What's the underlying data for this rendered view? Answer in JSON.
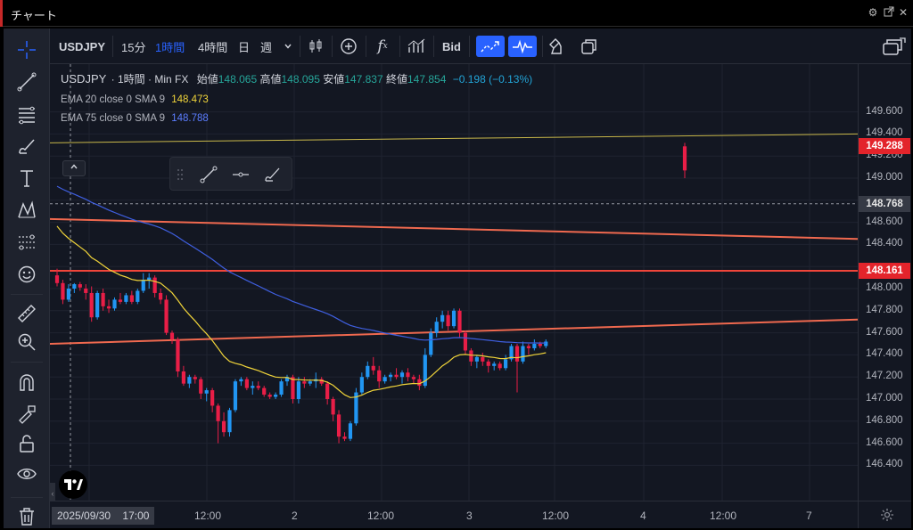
{
  "window": {
    "title": "チャート",
    "settings_icon": "gear-icon",
    "popout_icon": "popout-icon",
    "close_icon": "close-icon"
  },
  "toolbar": {
    "symbol": "USDJPY",
    "intervals": [
      "15分",
      "1時間",
      "4時間",
      "日",
      "週"
    ],
    "active_interval": "1時間",
    "bid_label": "Bid"
  },
  "legend": {
    "symbol": "USDJPY",
    "interval": "1時間",
    "source": "Min FX",
    "open_label": "始値",
    "open": "148.065",
    "high_label": "高値",
    "high": "148.095",
    "low_label": "安値",
    "low": "147.837",
    "close_label": "終値",
    "close": "147.854",
    "change": "−0.198 (−0.13%)"
  },
  "indicators": [
    {
      "label": "EMA 20 close 0 SMA 9",
      "value": "148.473",
      "color": "#f0d43a"
    },
    {
      "label": "EMA 75 close 0 SMA 9",
      "value": "148.788",
      "color": "#3f5fe0"
    }
  ],
  "price_scale": {
    "labels": [
      "149.600",
      "149.400",
      "149.200",
      "149.000",
      "148.600",
      "148.400",
      "148.000",
      "147.800",
      "147.600",
      "147.400",
      "147.200",
      "147.000",
      "146.800",
      "146.600",
      "146.400"
    ],
    "tags": [
      {
        "value": "149.288",
        "kind": "red"
      },
      {
        "value": "148.768",
        "kind": "crosshair"
      },
      {
        "value": "148.161",
        "kind": "red"
      }
    ]
  },
  "time_scale": {
    "crosshair_date": "2025/09/30",
    "crosshair_time": "17:00",
    "labels": [
      "12:00",
      "2",
      "12:00",
      "3",
      "12:00",
      "4",
      "12:00",
      "7"
    ]
  },
  "chart_data": {
    "type": "candlestick",
    "symbol": "USDJPY",
    "ylim": [
      146.3,
      149.7
    ],
    "grid": true,
    "up_color": "#2196f3",
    "down_color": "#e91e47",
    "candles": [
      [
        148.12,
        148.18,
        148.02,
        148.05
      ],
      [
        148.05,
        148.08,
        147.86,
        147.9
      ],
      [
        147.9,
        148.04,
        147.88,
        148.0
      ],
      [
        148.0,
        148.05,
        147.96,
        148.04
      ],
      [
        148.04,
        148.06,
        147.98,
        148.01
      ],
      [
        148.0,
        148.04,
        147.9,
        147.96
      ],
      [
        147.96,
        148.02,
        147.7,
        147.74
      ],
      [
        147.74,
        147.98,
        147.72,
        147.96
      ],
      [
        147.96,
        148.0,
        147.8,
        147.84
      ],
      [
        147.84,
        147.9,
        147.78,
        147.82
      ],
      [
        147.82,
        147.92,
        147.8,
        147.9
      ],
      [
        147.9,
        147.96,
        147.86,
        147.88
      ],
      [
        147.88,
        147.96,
        147.86,
        147.94
      ],
      [
        147.94,
        147.98,
        147.86,
        147.88
      ],
      [
        147.88,
        148.0,
        147.86,
        147.98
      ],
      [
        147.98,
        148.14,
        147.96,
        148.08
      ],
      [
        148.08,
        148.14,
        148.0,
        148.1
      ],
      [
        148.1,
        148.12,
        147.92,
        147.96
      ],
      [
        147.96,
        148.0,
        147.86,
        147.9
      ],
      [
        147.9,
        147.94,
        147.58,
        147.6
      ],
      [
        147.6,
        147.62,
        147.5,
        147.54
      ],
      [
        147.54,
        147.56,
        147.2,
        147.25
      ],
      [
        147.25,
        147.3,
        147.12,
        147.14
      ],
      [
        147.14,
        147.22,
        147.1,
        147.2
      ],
      [
        147.2,
        147.22,
        147.14,
        147.18
      ],
      [
        147.18,
        147.2,
        147.0,
        147.05
      ],
      [
        147.05,
        147.1,
        146.98,
        147.08
      ],
      [
        147.08,
        147.1,
        146.88,
        146.94
      ],
      [
        146.94,
        146.96,
        146.6,
        146.8
      ],
      [
        146.8,
        146.88,
        146.66,
        146.7
      ],
      [
        146.7,
        146.92,
        146.66,
        146.9
      ],
      [
        146.9,
        147.18,
        146.88,
        147.16
      ],
      [
        147.16,
        147.2,
        147.12,
        147.18
      ],
      [
        147.18,
        147.2,
        147.08,
        147.1
      ],
      [
        147.1,
        147.16,
        147.04,
        147.12
      ],
      [
        147.12,
        147.16,
        147.08,
        147.1
      ],
      [
        147.1,
        147.12,
        147.02,
        147.04
      ],
      [
        147.04,
        147.06,
        147.0,
        147.02
      ],
      [
        147.02,
        147.06,
        147.0,
        147.04
      ],
      [
        147.04,
        147.18,
        147.02,
        147.16
      ],
      [
        147.16,
        147.22,
        147.12,
        147.2
      ],
      [
        147.2,
        147.22,
        146.96,
        147.0
      ],
      [
        147.0,
        147.2,
        146.96,
        147.16
      ],
      [
        147.16,
        147.2,
        147.1,
        147.14
      ],
      [
        147.14,
        147.18,
        147.12,
        147.16
      ],
      [
        147.16,
        147.24,
        147.1,
        147.18
      ],
      [
        147.18,
        147.2,
        147.12,
        147.14
      ],
      [
        147.14,
        147.16,
        146.95,
        147.0
      ],
      [
        147.0,
        147.02,
        146.8,
        146.86
      ],
      [
        146.86,
        146.9,
        146.6,
        146.66
      ],
      [
        146.66,
        146.7,
        146.62,
        146.64
      ],
      [
        146.64,
        146.8,
        146.62,
        146.78
      ],
      [
        146.78,
        147.1,
        146.76,
        147.06
      ],
      [
        147.06,
        147.24,
        147.04,
        147.2
      ],
      [
        147.2,
        147.34,
        147.18,
        147.3
      ],
      [
        147.3,
        147.38,
        147.22,
        147.26
      ],
      [
        147.26,
        147.3,
        147.1,
        147.16
      ],
      [
        147.16,
        147.22,
        147.14,
        147.2
      ],
      [
        147.2,
        147.24,
        147.16,
        147.22
      ],
      [
        147.22,
        147.28,
        147.18,
        147.2
      ],
      [
        147.2,
        147.26,
        147.14,
        147.24
      ],
      [
        147.24,
        147.28,
        147.16,
        147.2
      ],
      [
        147.2,
        147.22,
        147.14,
        147.18
      ],
      [
        147.18,
        147.22,
        147.08,
        147.12
      ],
      [
        147.12,
        147.46,
        147.1,
        147.4
      ],
      [
        147.4,
        147.64,
        147.38,
        147.6
      ],
      [
        147.6,
        147.74,
        147.56,
        147.7
      ],
      [
        147.7,
        147.8,
        147.64,
        147.76
      ],
      [
        147.76,
        147.8,
        147.62,
        147.66
      ],
      [
        147.66,
        147.82,
        147.64,
        147.8
      ],
      [
        147.8,
        147.82,
        147.56,
        147.6
      ],
      [
        147.6,
        147.62,
        147.4,
        147.44
      ],
      [
        147.44,
        147.46,
        147.3,
        147.34
      ],
      [
        147.34,
        147.4,
        147.28,
        147.38
      ],
      [
        147.38,
        147.42,
        147.3,
        147.34
      ],
      [
        147.34,
        147.36,
        147.24,
        147.3
      ],
      [
        147.3,
        147.34,
        147.26,
        147.32
      ],
      [
        147.32,
        147.34,
        147.26,
        147.28
      ],
      [
        147.28,
        147.4,
        147.26,
        147.36
      ],
      [
        147.36,
        147.5,
        147.34,
        147.48
      ],
      [
        147.48,
        147.5,
        147.06,
        147.34
      ],
      [
        147.34,
        147.52,
        147.32,
        147.48
      ],
      [
        147.48,
        147.5,
        147.4,
        147.46
      ],
      [
        147.46,
        147.54,
        147.44,
        147.5
      ],
      [
        147.5,
        147.52,
        147.46,
        147.48
      ],
      [
        147.48,
        147.54,
        147.46,
        147.52
      ]
    ],
    "last_candle": [
      149.288,
      149.32,
      149.0,
      149.07
    ]
  }
}
